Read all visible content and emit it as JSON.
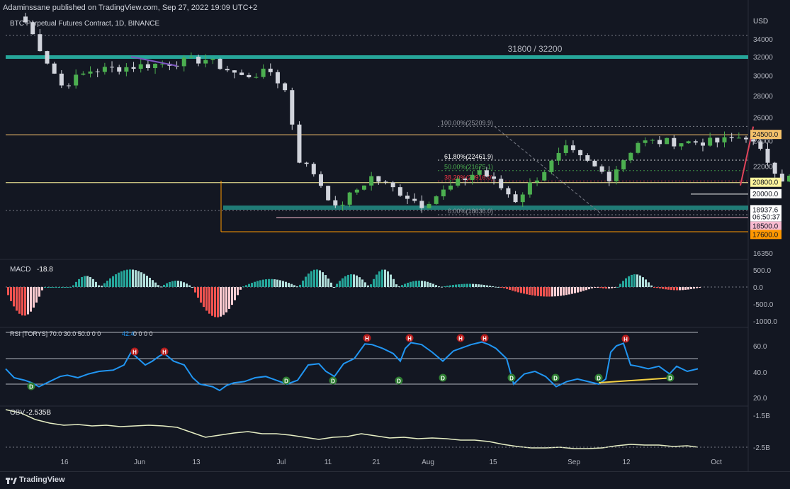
{
  "header": {
    "publisher": "Adaminssane published on TradingView.com, Sep 27, 2022 19:09 UTC+2"
  },
  "symbol": {
    "title": "BTC Perpetual Futures Contract, 1D, BINANCE",
    "currency": "USD"
  },
  "zone_label": "31800 / 32200",
  "price_axis": {
    "ticks": [
      34000,
      32000,
      30000,
      28000,
      26000,
      24000,
      22000,
      19000,
      16350
    ]
  },
  "price_badges": [
    {
      "text": "24500.0",
      "price": 24500,
      "bg": "#f5c26b",
      "fg": "#131722"
    },
    {
      "text": "20800.0",
      "price": 20800,
      "bg": "#fff59d",
      "fg": "#131722"
    },
    {
      "text": "20000.0",
      "price": 20000,
      "bg": "#ffffff",
      "fg": "#131722"
    },
    {
      "text": "18937.6",
      "price": 18937.6,
      "bg": "#ffffff",
      "fg": "#131722"
    },
    {
      "text": "06:50:37",
      "price": 18480,
      "bg": "#ffffff",
      "fg": "#131722"
    },
    {
      "text": "18500.0",
      "price": 17900,
      "bg": "#f8bbd0",
      "fg": "#131722"
    },
    {
      "text": "17600.0",
      "price": 17400,
      "bg": "#ff9800",
      "fg": "#131722"
    }
  ],
  "fib_labels": [
    {
      "text": "100.00%(25209.9)",
      "price": 25210,
      "color": "#9598a1"
    },
    {
      "text": "61.80%(22461.9)",
      "price": 22462,
      "color": "#ffffff"
    },
    {
      "text": "50.00%(21675.1)",
      "price": 21675,
      "color": "#4caf50"
    },
    {
      "text": "38.20%(20916.0)",
      "price": 20916,
      "color": "#f23645"
    },
    {
      "text": "0.00%(18636.0)",
      "price": 18636,
      "color": "#9598a1"
    }
  ],
  "indicators": {
    "macd": {
      "label": "MACD",
      "value": "-18.8",
      "ticks": [
        "500.0",
        "0.0",
        "-500.0",
        "-1000.0"
      ]
    },
    "rsi": {
      "label": "RSI [TORYS] 70.0 30.0 50.0 0 0",
      "value": "42.4",
      "tail": "0 0 0 0",
      "ticks": [
        "60.0",
        "40.0",
        "20.0"
      ]
    },
    "obv": {
      "label": "OBV",
      "value": "-2.535B",
      "ticks": [
        "-1.5B",
        "-2.5B"
      ]
    }
  },
  "time_axis": {
    "labels": [
      "16",
      "Jun",
      "13",
      "Jul",
      "11",
      "21",
      "Aug",
      "15",
      "Sep",
      "12",
      "Oct"
    ]
  },
  "footer": {
    "brand": "TradingView"
  },
  "colors": {
    "up": "#4caf50",
    "down": "#d1d4dc",
    "macd_up": "#26a69a",
    "macd_down": "#ef5350",
    "rsi": "#2196f3",
    "accent_teal": "#26a69a"
  },
  "chart_data": {
    "type": "candlestick",
    "title": "BTC Perpetual Futures Contract, 1D, BINANCE",
    "anchors": [
      {
        "date": "May 6",
        "price": 36000
      },
      {
        "date": "May 9",
        "price": 31500
      },
      {
        "date": "May 11",
        "price": 29000
      },
      {
        "date": "May 15",
        "price": 30500
      },
      {
        "date": "May 31",
        "price": 31700
      },
      {
        "date": "Jun 5",
        "price": 29900
      },
      {
        "date": "Jun 9",
        "price": 30400
      },
      {
        "date": "Jun 11",
        "price": 28500
      },
      {
        "date": "Jun 13",
        "price": 22500
      },
      {
        "date": "Jun 15",
        "price": 21500
      },
      {
        "date": "Jun 18",
        "price": 19000
      },
      {
        "date": "Jun 23",
        "price": 21200
      },
      {
        "date": "Jun 30",
        "price": 19300
      },
      {
        "date": "Jul 8",
        "price": 21700
      },
      {
        "date": "Jul 13",
        "price": 19600
      },
      {
        "date": "Jul 20",
        "price": 23300
      },
      {
        "date": "Jul 26",
        "price": 21200
      },
      {
        "date": "Jul 30",
        "price": 23900
      },
      {
        "date": "Aug 10",
        "price": 23900
      },
      {
        "date": "Aug 14",
        "price": 24400
      },
      {
        "date": "Aug 19",
        "price": 21100
      },
      {
        "date": "Aug 25",
        "price": 21500
      },
      {
        "date": "Aug 29",
        "price": 19700
      },
      {
        "date": "Sep 6",
        "price": 18800
      },
      {
        "date": "Sep 9",
        "price": 21400
      },
      {
        "date": "Sep 12",
        "price": 22400
      },
      {
        "date": "Sep 13",
        "price": 20200
      },
      {
        "date": "Sep 19",
        "price": 19400
      },
      {
        "date": "Sep 21",
        "price": 18500
      },
      {
        "date": "Sep 27",
        "price": 18937.6
      }
    ],
    "levels": [
      32000,
      24500,
      20800,
      20000,
      18500,
      17600
    ],
    "trendline": {
      "start": {
        "date": "Aug 15",
        "price": 25200
      },
      "end": {
        "date": "Oct 1",
        "price": 20600
      }
    },
    "rsi_overbought": 70,
    "rsi_oversold": 30
  }
}
